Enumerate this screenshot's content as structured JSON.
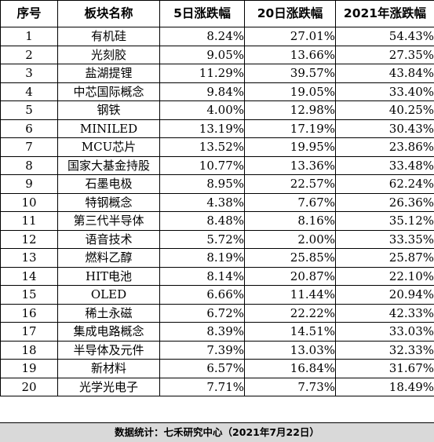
{
  "header": {
    "col_index": "序号",
    "col_name": "板块名称",
    "col_5d": "5日涨跌幅",
    "col_20d": "20日涨跌幅",
    "col_2021": "2021年涨跌幅"
  },
  "rows": [
    {
      "idx": "1",
      "name": "有机硅",
      "d5": "8.24%",
      "d20": "27.01%",
      "y2021": "54.43%"
    },
    {
      "idx": "2",
      "name": "光刻胶",
      "d5": "9.05%",
      "d20": "13.66%",
      "y2021": "27.35%"
    },
    {
      "idx": "3",
      "name": "盐湖提锂",
      "d5": "11.29%",
      "d20": "39.57%",
      "y2021": "43.84%"
    },
    {
      "idx": "4",
      "name": "中芯国际概念",
      "d5": "9.84%",
      "d20": "19.05%",
      "y2021": "33.40%"
    },
    {
      "idx": "5",
      "name": "钢铁",
      "d5": "4.00%",
      "d20": "12.98%",
      "y2021": "40.25%"
    },
    {
      "idx": "6",
      "name": "MINILED",
      "d5": "13.19%",
      "d20": "17.19%",
      "y2021": "30.43%"
    },
    {
      "idx": "7",
      "name": "MCU芯片",
      "d5": "13.52%",
      "d20": "19.95%",
      "y2021": "23.86%"
    },
    {
      "idx": "8",
      "name": "国家大基金持股",
      "d5": "10.77%",
      "d20": "13.36%",
      "y2021": "33.48%"
    },
    {
      "idx": "9",
      "name": "石墨电极",
      "d5": "8.95%",
      "d20": "22.57%",
      "y2021": "62.24%"
    },
    {
      "idx": "10",
      "name": "特钢概念",
      "d5": "4.38%",
      "d20": "7.67%",
      "y2021": "26.36%"
    },
    {
      "idx": "11",
      "name": "第三代半导体",
      "d5": "8.48%",
      "d20": "8.16%",
      "y2021": "35.12%"
    },
    {
      "idx": "12",
      "name": "语音技术",
      "d5": "5.72%",
      "d20": "2.00%",
      "y2021": "33.35%"
    },
    {
      "idx": "13",
      "name": "燃料乙醇",
      "d5": "8.19%",
      "d20": "25.85%",
      "y2021": "25.87%"
    },
    {
      "idx": "14",
      "name": "HIT电池",
      "d5": "8.14%",
      "d20": "20.87%",
      "y2021": "22.10%"
    },
    {
      "idx": "15",
      "name": "OLED",
      "d5": "6.66%",
      "d20": "11.44%",
      "y2021": "20.94%"
    },
    {
      "idx": "16",
      "name": "稀土永磁",
      "d5": "6.72%",
      "d20": "22.22%",
      "y2021": "42.33%"
    },
    {
      "idx": "17",
      "name": "集成电路概念",
      "d5": "8.39%",
      "d20": "14.51%",
      "y2021": "33.03%"
    },
    {
      "idx": "18",
      "name": "半导体及元件",
      "d5": "7.39%",
      "d20": "13.03%",
      "y2021": "32.33%"
    },
    {
      "idx": "19",
      "name": "新材料",
      "d5": "6.57%",
      "d20": "16.84%",
      "y2021": "31.67%"
    },
    {
      "idx": "20",
      "name": "光学光电子",
      "d5": "7.71%",
      "d20": "7.73%",
      "y2021": "18.49%"
    }
  ],
  "footer": {
    "source": "数据统计：七禾研究中心（2021年7月22日）"
  },
  "colors": {
    "footer_bg": "#d9d9d9",
    "grid_line": "#000000"
  }
}
